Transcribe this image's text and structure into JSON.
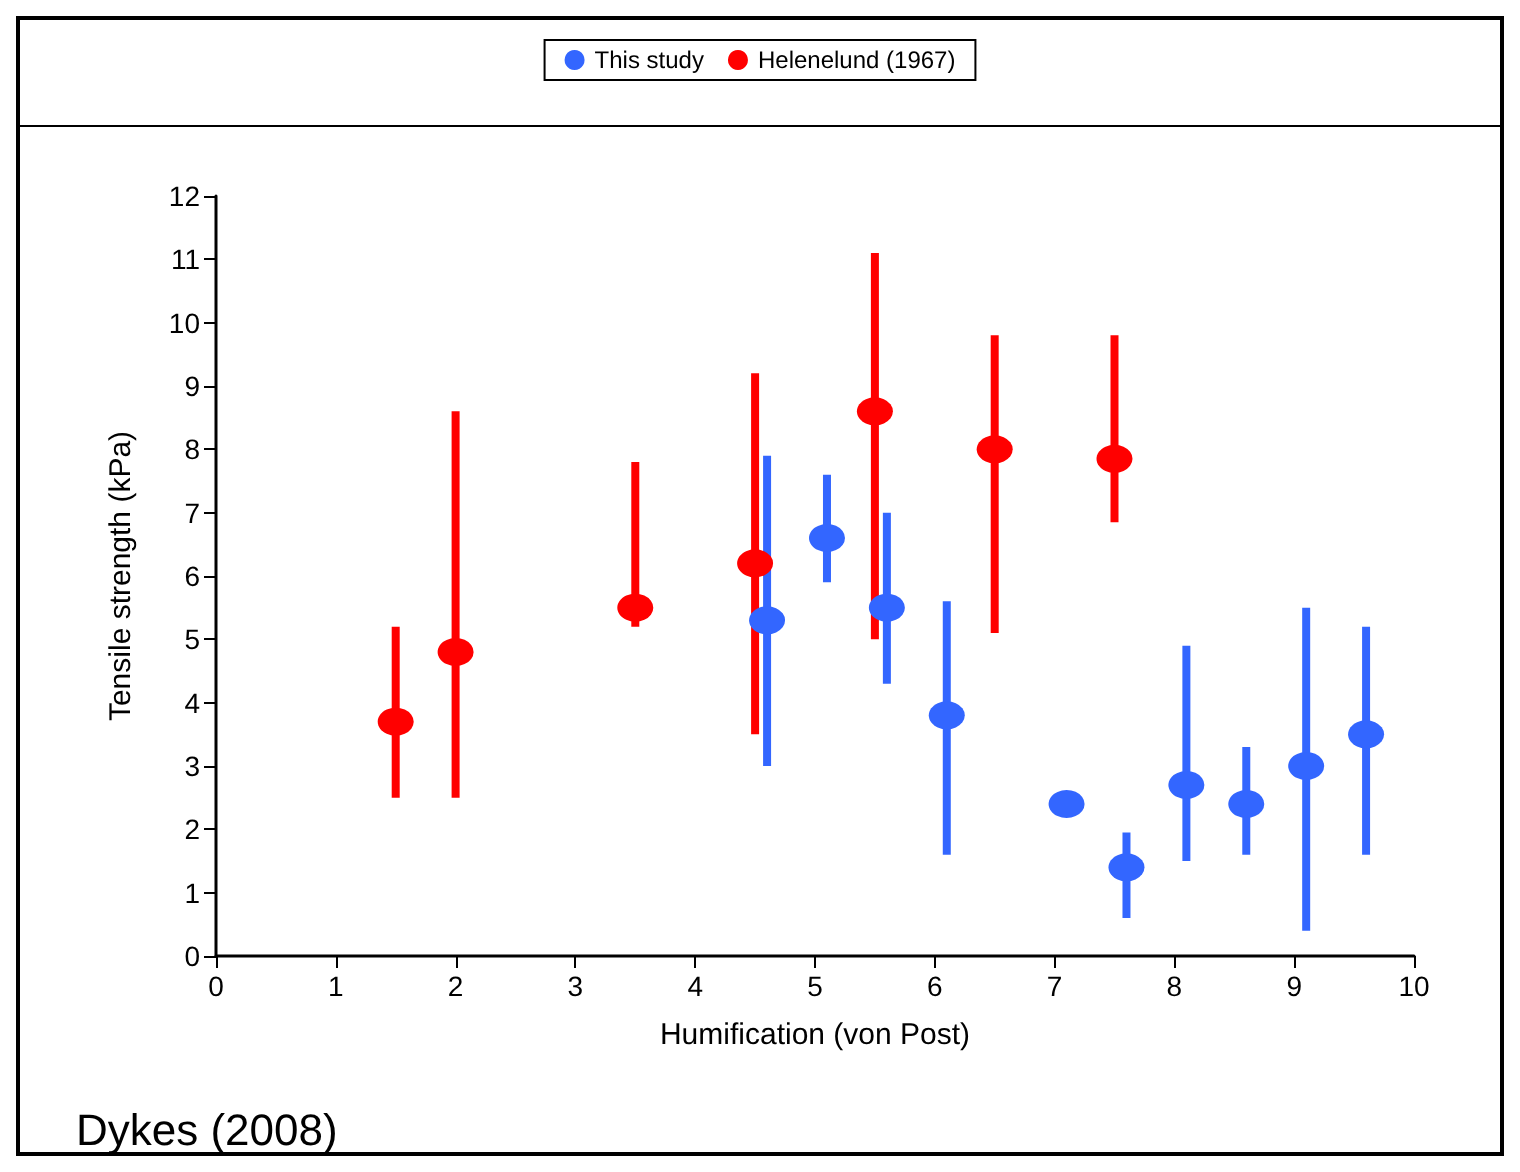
{
  "chart_data": {
    "type": "scatter",
    "xlabel": "Humification (von Post)",
    "ylabel": "Tensile strength (kPa)",
    "annotations": [
      "Dykes (2008)"
    ],
    "xlim": [
      0,
      10
    ],
    "xticks": [
      0,
      1,
      2,
      3,
      4,
      5,
      6,
      7,
      8,
      9,
      10
    ],
    "ylim": [
      0,
      12
    ],
    "yticks": [
      0,
      1,
      2,
      3,
      4,
      5,
      6,
      7,
      8,
      9,
      10,
      11,
      12
    ],
    "grid": false,
    "legend": "top",
    "marker": "circle",
    "series": [
      {
        "name": "This study",
        "color": "#3366ff",
        "x": [
          4.6,
          5.1,
          5.6,
          6.1,
          7.1,
          7.6,
          8.1,
          8.6,
          9.1,
          9.6
        ],
        "values": [
          5.3,
          6.6,
          5.5,
          3.8,
          2.4,
          1.4,
          2.7,
          2.4,
          3.0,
          3.5
        ],
        "errors": [
          [
            3.0,
            7.9
          ],
          [
            5.9,
            7.6
          ],
          [
            4.3,
            7.0
          ],
          [
            1.6,
            5.6
          ],
          null,
          [
            0.6,
            1.95
          ],
          [
            1.5,
            4.9
          ],
          [
            1.6,
            3.3
          ],
          [
            0.4,
            5.5
          ],
          [
            1.6,
            5.2
          ]
        ]
      },
      {
        "name": "Helenelund (1967)",
        "color": "#ff0000",
        "x": [
          1.5,
          2.0,
          3.5,
          4.5,
          5.5,
          6.5,
          7.5
        ],
        "values": [
          3.7,
          4.8,
          5.5,
          6.2,
          8.6,
          8.0,
          7.85
        ],
        "errors": [
          [
            2.5,
            5.2
          ],
          [
            2.5,
            8.6
          ],
          [
            5.2,
            7.8
          ],
          [
            3.5,
            9.2
          ],
          [
            5.0,
            11.1
          ],
          [
            5.1,
            9.8
          ],
          [
            6.85,
            9.8
          ]
        ]
      }
    ]
  }
}
